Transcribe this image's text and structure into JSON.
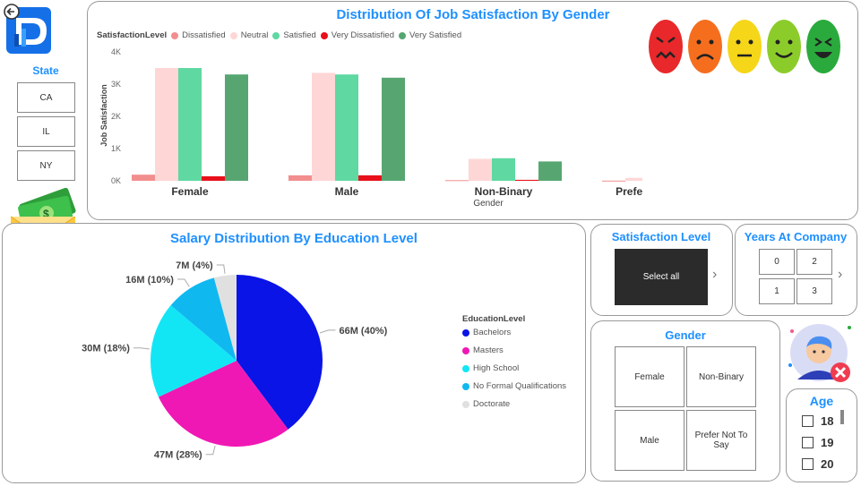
{
  "state": {
    "title": "State",
    "items": [
      "CA",
      "IL",
      "NY"
    ]
  },
  "job_chart": {
    "title": "Distribution Of Job Satisfaction By Gender",
    "legend_title": "SatisfactionLevel",
    "ylabel": "Job Satisfaction",
    "xlabel": "Gender",
    "y_ticks": [
      "0K",
      "1K",
      "2K",
      "3K",
      "4K"
    ]
  },
  "salary_chart": {
    "title": "Salary Distribution By Education Level",
    "legend_title": "EducationLevel"
  },
  "satisfaction_slicer": {
    "title": "Satisfaction Level",
    "select_all": "Select all"
  },
  "years_slicer": {
    "title": "Years At Company",
    "items": [
      "0",
      "2",
      "1",
      "3"
    ]
  },
  "gender_slicer": {
    "title": "Gender",
    "items": [
      "Female",
      "Non-Binary",
      "Male",
      "Prefer Not To Say"
    ]
  },
  "age_slicer": {
    "title": "Age",
    "items": [
      "18",
      "19",
      "20"
    ]
  },
  "colors": {
    "accent": "#1e90ff",
    "dissatisfied": "#f28e8e",
    "neutral": "#ffd6d6",
    "satisfied": "#5fd8a2",
    "very_dissatisfied": "#e8101a",
    "very_satisfied": "#57a672"
  },
  "icons": [
    "back-arrow-icon",
    "logo-icon",
    "money-envelope-icon",
    "calendar-money-icon",
    "user-remove-icon",
    "emoji-faces"
  ],
  "chart_data": [
    {
      "type": "bar",
      "title": "Distribution Of Job Satisfaction By Gender",
      "xlabel": "Gender",
      "ylabel": "Job Satisfaction",
      "ylim": [
        0,
        4000
      ],
      "categories": [
        "Female",
        "Male",
        "Non-Binary",
        "Prefer Not To Say"
      ],
      "legend": "top-left",
      "series": [
        {
          "name": "Dissatisfied",
          "color": "#f28e8e",
          "values": [
            190,
            170,
            20,
            5
          ]
        },
        {
          "name": "Neutral",
          "color": "#ffd6d6",
          "values": [
            3500,
            3350,
            680,
            90
          ]
        },
        {
          "name": "Satisfied",
          "color": "#5fd8a2",
          "values": [
            3500,
            3300,
            700,
            90
          ]
        },
        {
          "name": "Very Dissatisfied",
          "color": "#e8101a",
          "values": [
            140,
            170,
            30,
            5
          ]
        },
        {
          "name": "Very Satisfied",
          "color": "#57a672",
          "values": [
            3300,
            3200,
            600,
            70
          ]
        }
      ]
    },
    {
      "type": "pie",
      "title": "Salary Distribution By Education Level",
      "legend": "right",
      "slices": [
        {
          "name": "Bachelors",
          "value": 66,
          "label": "66M (40%)",
          "color": "#0a14e6"
        },
        {
          "name": "Masters",
          "value": 47,
          "label": "47M (28%)",
          "color": "#f018b4"
        },
        {
          "name": "High School",
          "value": 30,
          "label": "30M (18%)",
          "color": "#12e6f5"
        },
        {
          "name": "No Formal Qualifications",
          "value": 16,
          "label": "16M (10%)",
          "color": "#10b8f0"
        },
        {
          "name": "Doctorate",
          "value": 7,
          "label": "7M (4%)",
          "color": "#e0e0e0"
        }
      ]
    }
  ]
}
